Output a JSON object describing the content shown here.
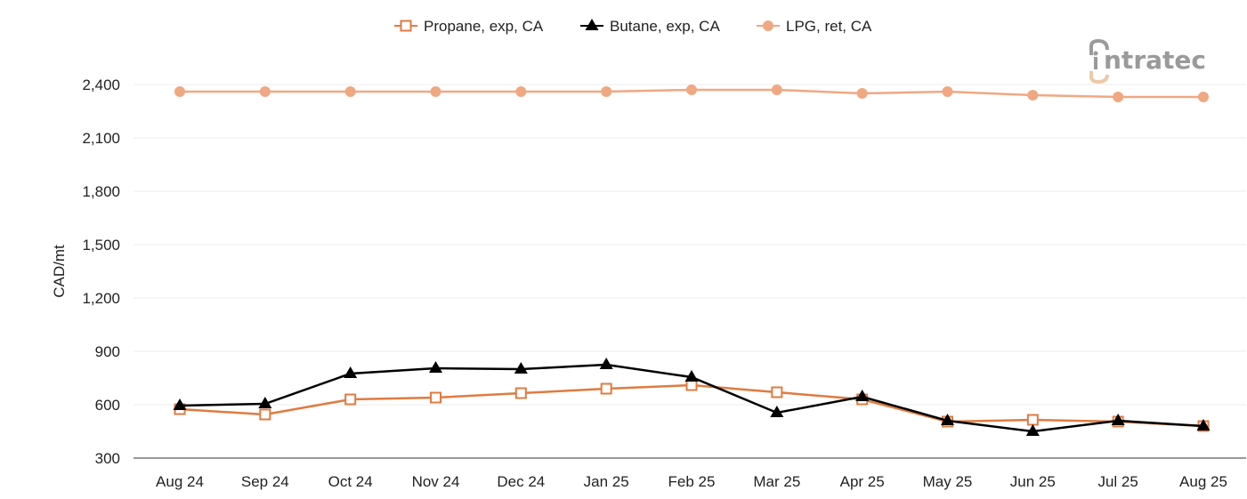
{
  "chart_data": {
    "type": "line",
    "title": "",
    "xlabel": "",
    "ylabel": "CAD/mt",
    "ylim": [
      300,
      2400
    ],
    "yticks": [
      300,
      600,
      900,
      1200,
      1500,
      1800,
      2100,
      2400
    ],
    "ytick_labels": [
      "300",
      "600",
      "900",
      "1,200",
      "1,500",
      "1,800",
      "2,100",
      "2,400"
    ],
    "grid": true,
    "legend_position": "top",
    "categories": [
      "Aug 24",
      "Sep 24",
      "Oct 24",
      "Nov 24",
      "Dec 24",
      "Jan 25",
      "Feb 25",
      "Mar 25",
      "Apr 25",
      "May 25",
      "Jun 25",
      "Jul 25",
      "Aug 25"
    ],
    "series": [
      {
        "name": "Propane, exp, CA",
        "color": "#E07B40",
        "marker": "square-open",
        "values": [
          575,
          545,
          630,
          640,
          665,
          690,
          710,
          670,
          630,
          505,
          515,
          505,
          480
        ]
      },
      {
        "name": "Butane, exp, CA",
        "color": "#000000",
        "marker": "triangle",
        "values": [
          595,
          605,
          775,
          805,
          800,
          825,
          755,
          555,
          645,
          510,
          450,
          510,
          480
        ]
      },
      {
        "name": "LPG, ret, CA",
        "color": "#F0A882",
        "marker": "circle",
        "values": [
          2360,
          2360,
          2360,
          2360,
          2360,
          2360,
          2370,
          2370,
          2350,
          2360,
          2340,
          2330,
          2330
        ]
      }
    ]
  },
  "logo": {
    "text": "intratec"
  }
}
